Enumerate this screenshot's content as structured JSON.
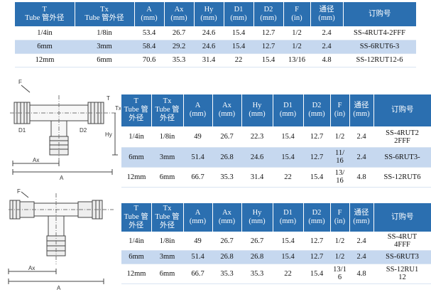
{
  "header": {
    "t_en": "T",
    "t_cn": "Tube 管外径",
    "tx_en": "Tx",
    "tx_cn": "Tube 管外径",
    "t_en2": "T",
    "t_cn_a": "Tube 管",
    "t_cn_b": "外径",
    "tx_en2": "Tx",
    "tx_cn_a": "Tube 管",
    "tx_cn_b": "外径",
    "a": "A",
    "ax": "Ax",
    "hy": "Hy",
    "d1": "D1",
    "d2": "D2",
    "f": "F",
    "mm": "(mm)",
    "in": "(in)",
    "bore": "通径",
    "order": "订购号"
  },
  "table1": {
    "rows": [
      {
        "t": "1/4in",
        "tx": "1/8in",
        "a": "53.4",
        "ax": "26.7",
        "hy": "24.6",
        "d1": "15.4",
        "d2": "12.7",
        "f": "1/2",
        "bore": "2.4",
        "order": "SS-4RUT4-2FFF"
      },
      {
        "t": "6mm",
        "tx": "3mm",
        "a": "58.4",
        "ax": "29.2",
        "hy": "24.6",
        "d1": "15.4",
        "d2": "12.7",
        "f": "1/2",
        "bore": "2.4",
        "order": "SS-6RUT6-3"
      },
      {
        "t": "12mm",
        "tx": "6mm",
        "a": "70.6",
        "ax": "35.3",
        "hy": "31.4",
        "d1": "22",
        "d2": "15.4",
        "f": "13/16",
        "bore": "4.8",
        "order": "SS-12RUT12-6"
      }
    ]
  },
  "table2": {
    "rows": [
      {
        "t": "1/4in",
        "tx": "1/8in",
        "a": "49",
        "ax": "26.7",
        "hy": "22.3",
        "d1": "15.4",
        "d2": "12.7",
        "f": "1/2",
        "bore": "2.4",
        "order_a": "SS-4RUT2",
        "order_b": "2FFF"
      },
      {
        "t": "6mm",
        "tx": "3mm",
        "a": "51.4",
        "ax": "26.8",
        "hy": "24.6",
        "d1": "15.4",
        "d2": "12.7",
        "f_a": "11/",
        "f_b": "16",
        "bore": "2.4",
        "order": "SS-6RUT3-"
      },
      {
        "t": "12mm",
        "tx": "6mm",
        "a": "66.7",
        "ax": "35.3",
        "hy": "31.4",
        "d1": "22",
        "d2": "15.4",
        "f_a": "13/",
        "f_b": "16",
        "bore": "4.8",
        "order": "SS-12RUT6"
      }
    ]
  },
  "table3": {
    "rows": [
      {
        "t": "1/4in",
        "tx": "1/8in",
        "a": "49",
        "ax": "26.7",
        "hy": "26.7",
        "d1": "15.4",
        "d2": "12.7",
        "f": "1/2",
        "bore": "2.4",
        "order_a": "SS-4RUT",
        "order_b": "4FFF"
      },
      {
        "t": "6mm",
        "tx": "3mm",
        "a": "51.4",
        "ax": "26.8",
        "hy": "26.8",
        "d1": "15.4",
        "d2": "12.7",
        "f": "1/2",
        "bore": "2.4",
        "order": "SS-6RUT3"
      },
      {
        "t": "12mm",
        "tx": "6mm",
        "a": "66.7",
        "ax": "35.3",
        "hy": "35.3",
        "d1": "22",
        "d2": "15.4",
        "f_a": "13/1",
        "f_b": "6",
        "bore": "4.8",
        "order_a": "SS-12RU1",
        "order_b": "12"
      }
    ]
  },
  "drawing1": {
    "labels": {
      "f": "F",
      "t": "T",
      "tx": "Tx",
      "d1": "D1",
      "d2": "D2",
      "hy": "Hy",
      "ax": "Ax",
      "a": "A"
    }
  },
  "drawing2": {
    "labels": {
      "f": "F",
      "ax": "Ax",
      "a": "A"
    }
  }
}
